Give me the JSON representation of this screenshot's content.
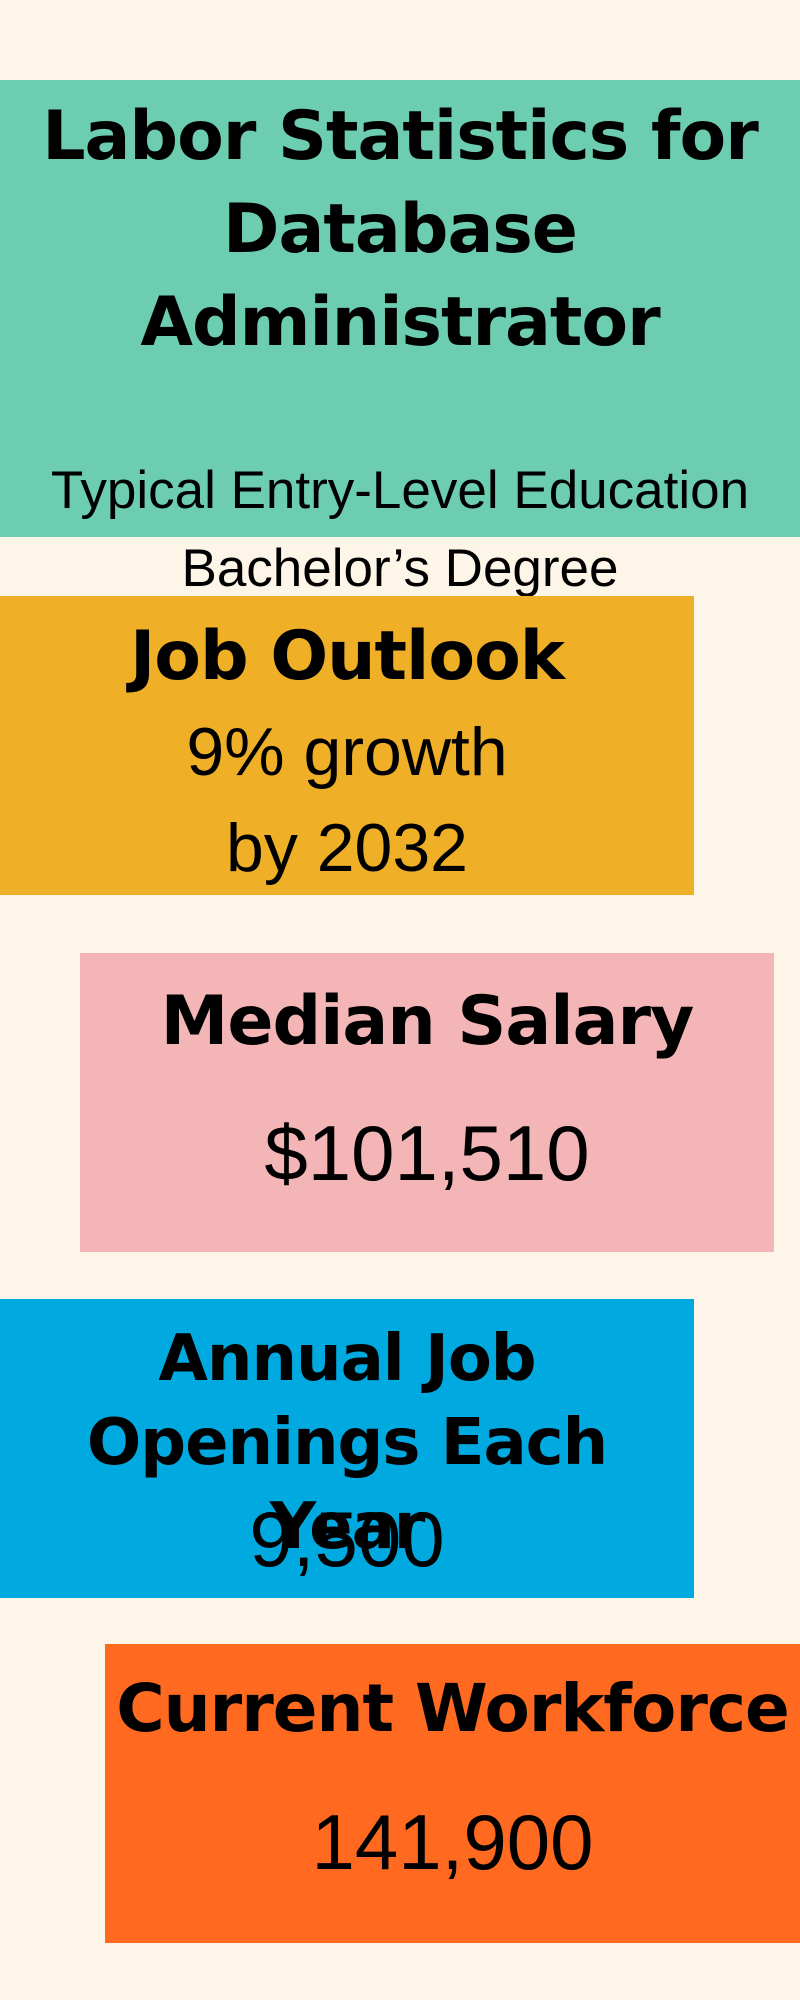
{
  "title": {
    "heading": [
      "Labor Statistics for",
      "Database",
      "Administrator"
    ],
    "education_label": "Typical Entry-Level Education",
    "education_value": "Bachelor’s Degree"
  },
  "job_outlook": {
    "heading": "Job Outlook",
    "line1": "9% growth",
    "line2": "by 2032"
  },
  "median_salary": {
    "heading": "Median Salary",
    "value": "$101,510"
  },
  "annual_openings": {
    "heading_line1": "Annual Job",
    "heading_line2": "Openings Each Year",
    "value": "9,500"
  },
  "current_workforce": {
    "heading": "Current Workforce",
    "value": "141,900"
  },
  "colors": {
    "background": "#fdf5e8",
    "title_block": "#6ccdb1",
    "job_outlook_block": "#efb027",
    "median_salary_block": "#f3b5b6",
    "annual_openings_block": "#00aae1",
    "current_workforce_block": "#ff6a20"
  }
}
